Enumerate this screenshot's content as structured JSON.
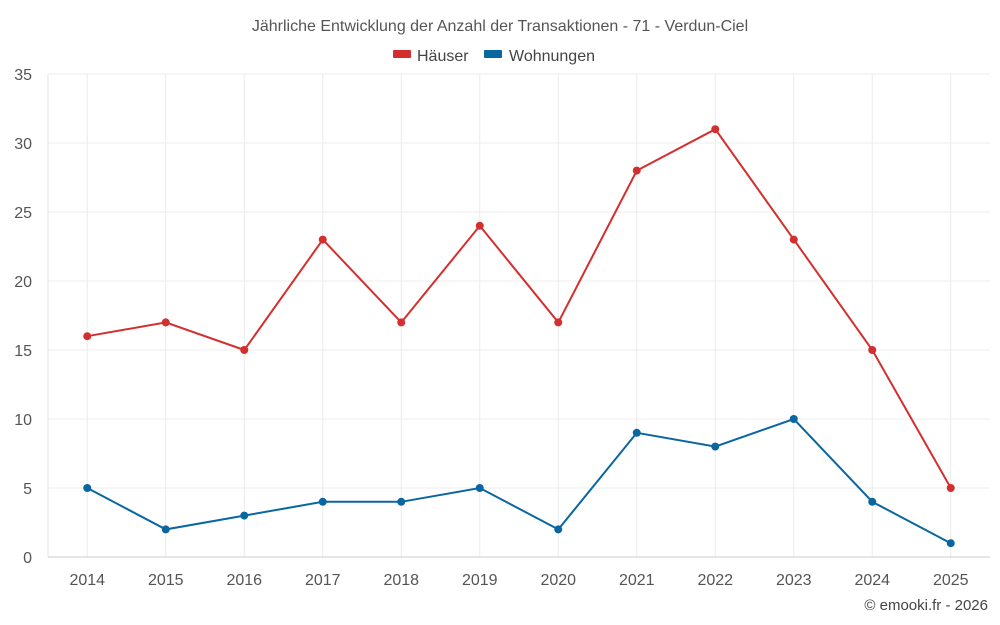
{
  "chart_data": {
    "type": "line",
    "title": "Jährliche Entwicklung der Anzahl der Transaktionen - 71 - Verdun-Ciel",
    "categories": [
      "2014",
      "2015",
      "2016",
      "2017",
      "2018",
      "2019",
      "2020",
      "2021",
      "2022",
      "2023",
      "2024",
      "2025"
    ],
    "series": [
      {
        "name": "Häuser",
        "color": "#d32f2f",
        "values": [
          16,
          17,
          15,
          23,
          17,
          24,
          17,
          28,
          31,
          23,
          15,
          5
        ]
      },
      {
        "name": "Wohnungen",
        "color": "#0a66a0",
        "values": [
          5,
          2,
          3,
          4,
          4,
          5,
          2,
          9,
          8,
          10,
          4,
          1
        ]
      }
    ],
    "ylim": [
      0,
      35
    ],
    "yticks": [
      0,
      5,
      10,
      15,
      20,
      25,
      30,
      35
    ],
    "xlabel": "",
    "ylabel": "",
    "grid": true,
    "legend_position": "top-center"
  },
  "credit": "© emooki.fr - 2026"
}
